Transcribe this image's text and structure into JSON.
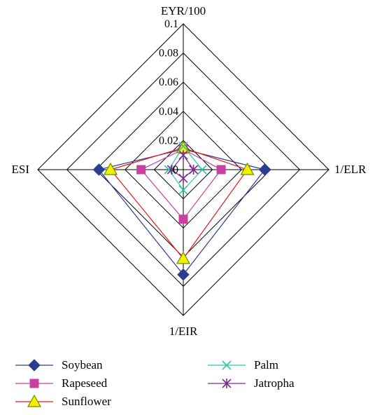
{
  "chart_data": {
    "type": "radar",
    "axes": [
      "EYR/100",
      "1/ELR",
      "1/EIR",
      "ESI"
    ],
    "rlim": [
      0,
      0.1
    ],
    "ticks": [
      0,
      0.02,
      0.04,
      0.06,
      0.08,
      0.1
    ],
    "tick_labels": [
      "0",
      "0.02",
      "0.04",
      "0.06",
      "0.08",
      "0.1"
    ],
    "grid": true,
    "legend_position": "bottom",
    "series": [
      {
        "name": "Soybean",
        "color": "#2b3d8f",
        "marker": "diamond",
        "values": [
          0.014,
          0.056,
          0.072,
          0.058
        ]
      },
      {
        "name": "Rapeseed",
        "color": "#c9409e",
        "marker": "square",
        "values": [
          0.014,
          0.026,
          0.034,
          0.029
        ]
      },
      {
        "name": "Sunflower",
        "color": "#e81818",
        "marker": "triangle",
        "values": [
          0.015,
          0.044,
          0.061,
          0.05
        ]
      },
      {
        "name": "Palm",
        "color": "#35c4a8",
        "marker": "x",
        "values": [
          0.016,
          0.013,
          0.014,
          0.01
        ]
      },
      {
        "name": "Jatropha",
        "color": "#7b2c8f",
        "marker": "star",
        "values": [
          0.01,
          0.007,
          0.006,
          0.008
        ]
      }
    ]
  }
}
